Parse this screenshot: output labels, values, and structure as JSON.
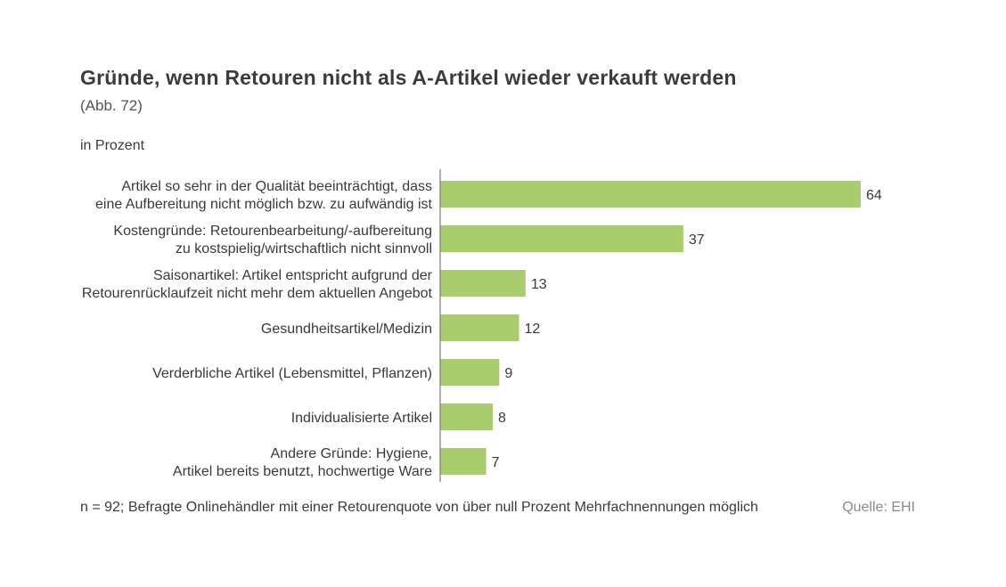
{
  "header": {
    "title": "Gründe, wenn Retouren nicht als A-Artikel wieder verkauft werden",
    "subtitle": "(Abb. 72)",
    "unit": "in Prozent"
  },
  "footer": {
    "note": "n = 92; Befragte Onlinehändler mit einer Retourenquote von über null Prozent Mehrfachnennungen möglich",
    "source": "Quelle: EHI"
  },
  "colors": {
    "bar": "#a9cd6c",
    "axis": "#7a7a7a",
    "text": "#3a3a3a"
  },
  "chart_data": {
    "type": "bar",
    "orientation": "horizontal",
    "title": "Gründe, wenn Retouren nicht als A-Artikel wieder verkauft werden",
    "unit": "in Prozent",
    "xlim": [
      0,
      64
    ],
    "grid": false,
    "legend": "none",
    "categories": [
      [
        "Artikel so sehr in der Qualität beeinträchtigt, dass",
        "eine Aufbereitung nicht möglich bzw. zu aufwändig ist"
      ],
      [
        "Kostengründe: Retourenbearbeitung/-aufbereitung",
        "zu kostspielig/wirtschaftlich nicht sinnvoll"
      ],
      [
        "Saisonartikel: Artikel entspricht aufgrund der",
        "Retourenrücklaufzeit nicht mehr dem aktuellen Angebot"
      ],
      [
        "Gesundheitsartikel/Medizin"
      ],
      [
        "Verderbliche Artikel (Lebensmittel, Pflanzen)"
      ],
      [
        "Individualisierte Artikel"
      ],
      [
        "Andere Gründe: Hygiene,",
        "Artikel bereits benutzt, hochwertige Ware"
      ]
    ],
    "values": [
      64,
      37,
      13,
      12,
      9,
      8,
      7
    ]
  }
}
